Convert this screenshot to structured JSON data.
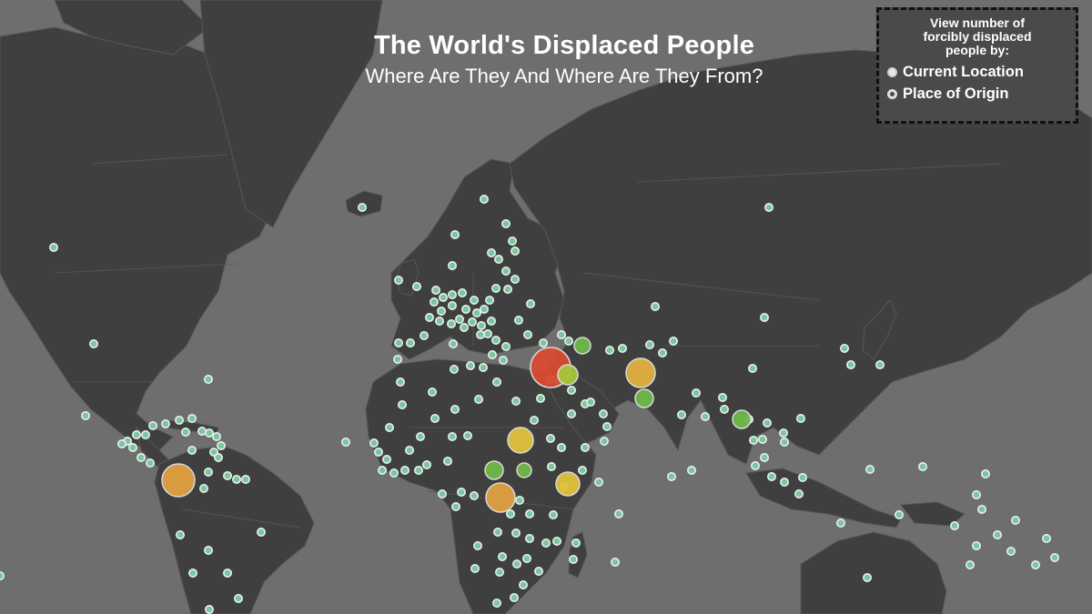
{
  "title": "The World's Displaced People",
  "subtitle": "Where Are They And Where Are They From?",
  "legend": {
    "heading_lines": [
      "View number of",
      "forcibly displaced",
      "people by:"
    ],
    "options": [
      {
        "label": "Current Location",
        "icon": "filled-circle-icon"
      },
      {
        "label": "Place of Origin",
        "icon": "hollow-circle-icon"
      }
    ]
  },
  "colors": {
    "ocean": "#6e6e6e",
    "land": "#3f3f3f",
    "small_marker_fill": "#7fc4a0",
    "small_marker_stroke": "#e6f2ec",
    "scale": [
      "#7fc4a0",
      "#6fb84a",
      "#a8c63a",
      "#e0c23a",
      "#e0a040",
      "#e0703a",
      "#d84a30"
    ]
  },
  "markers": {
    "large": [
      {
        "place": "Syria",
        "color": "#d84a30",
        "level": 7
      },
      {
        "place": "Colombia",
        "color": "#e0a040",
        "level": 5
      },
      {
        "place": "Afghanistan",
        "color": "#e0b040",
        "level": 5
      },
      {
        "place": "South Sudan",
        "color": "#e0a040",
        "level": 5
      },
      {
        "place": "Sudan",
        "color": "#e0c23a",
        "level": 4
      },
      {
        "place": "Somalia",
        "color": "#e0c23a",
        "level": 4
      },
      {
        "place": "Iraq",
        "color": "#a8c63a",
        "level": 3
      },
      {
        "place": "Pakistan",
        "color": "#6fb84a",
        "level": 2
      },
      {
        "place": "Central African Republic",
        "color": "#6fb84a",
        "level": 2
      },
      {
        "place": "Myanmar",
        "color": "#6fb84a",
        "level": 2
      },
      {
        "place": "Azerbaijan",
        "color": "#6fb84a",
        "level": 2
      },
      {
        "place": "Ethiopia",
        "color": "#6fb84a",
        "level": 2
      }
    ]
  }
}
